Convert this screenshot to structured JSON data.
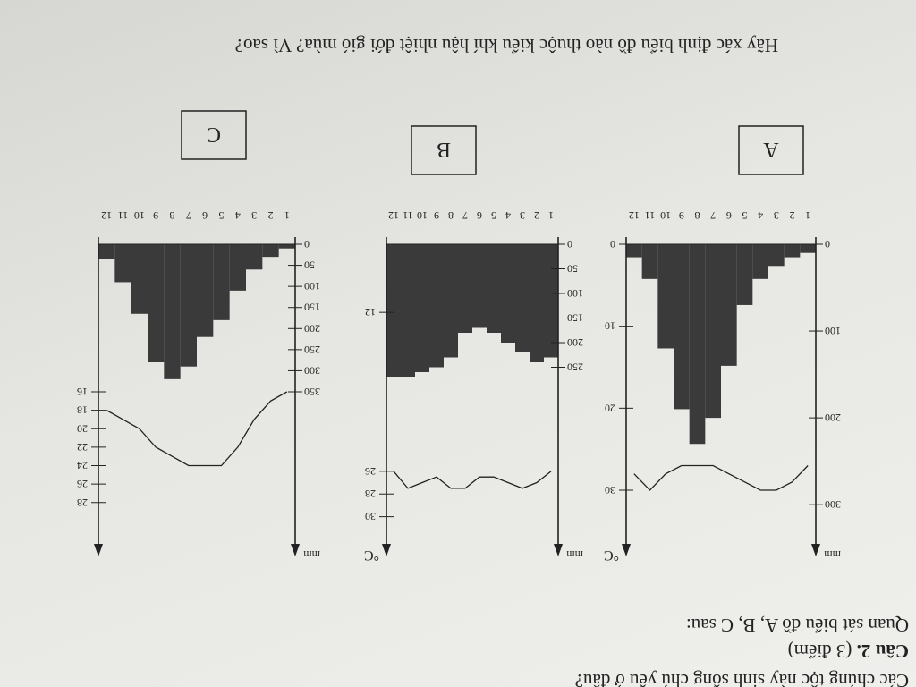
{
  "header": {
    "intro": "Các chủng tộc này sinh sống chủ yếu ở đâu?",
    "question_number": "Câu 2.",
    "points": "(3 điểm)",
    "instruction": "Quan sát biểu đồ A, B, C sau:"
  },
  "charts": [
    {
      "label": "A",
      "rain_unit": "mm",
      "temp_unit": "°C",
      "months": [
        "1",
        "2",
        "3",
        "4",
        "5",
        "6",
        "7",
        "8",
        "9",
        "10",
        "11",
        "12"
      ],
      "rainfall": [
        10,
        15,
        25,
        40,
        70,
        140,
        200,
        230,
        190,
        120,
        40,
        15
      ],
      "temperature": [
        27,
        29,
        30,
        30,
        29,
        28,
        27,
        27,
        27,
        28,
        30,
        28
      ],
      "rain_ylim": [
        0,
        340
      ],
      "rain_yticks": [
        0,
        100,
        200,
        300
      ],
      "temp_ylim": [
        0,
        36
      ],
      "temp_yticks": [
        0,
        10,
        20,
        30
      ]
    },
    {
      "label": "B",
      "rain_unit": "mm",
      "temp_unit": "°C",
      "months": [
        "1",
        "2",
        "3",
        "4",
        "5",
        "6",
        "7",
        "8",
        "9",
        "10",
        "11",
        "12"
      ],
      "rainfall": [
        230,
        240,
        220,
        200,
        180,
        170,
        180,
        230,
        250,
        260,
        270,
        270
      ],
      "temperature": [
        26,
        27,
        27.5,
        27,
        26.5,
        26.5,
        27.5,
        27.5,
        26.5,
        27,
        27.5,
        26
      ],
      "rain_ylim": [
        0,
        600
      ],
      "rain_yticks": [
        0,
        50,
        100,
        150,
        200,
        250
      ],
      "temp_ylim": [
        6,
        32
      ],
      "temp_yticks": [
        12,
        26,
        28,
        30
      ]
    },
    {
      "label": "C",
      "rain_unit": "mm",
      "months": [
        "1",
        "2",
        "3",
        "4",
        "5",
        "6",
        "7",
        "8",
        "9",
        "10",
        "11",
        "12"
      ],
      "rainfall": [
        10,
        30,
        60,
        110,
        180,
        220,
        290,
        320,
        280,
        165,
        90,
        35
      ],
      "temperature": [
        16,
        17,
        19,
        22,
        24,
        24,
        24,
        23,
        22,
        20,
        19,
        18
      ],
      "rain_ylim": [
        0,
        700
      ],
      "rain_yticks": [
        0,
        50,
        100,
        150,
        200,
        250,
        300,
        350
      ],
      "temp_ylim": [
        0,
        32
      ],
      "temp_yticks": [
        16,
        18,
        20,
        22,
        24,
        26,
        28
      ]
    }
  ],
  "question": "Hãy xác định biểu đồ nào thuộc kiểu khí hậu nhiệt đới gió mùa? Vì sao?"
}
